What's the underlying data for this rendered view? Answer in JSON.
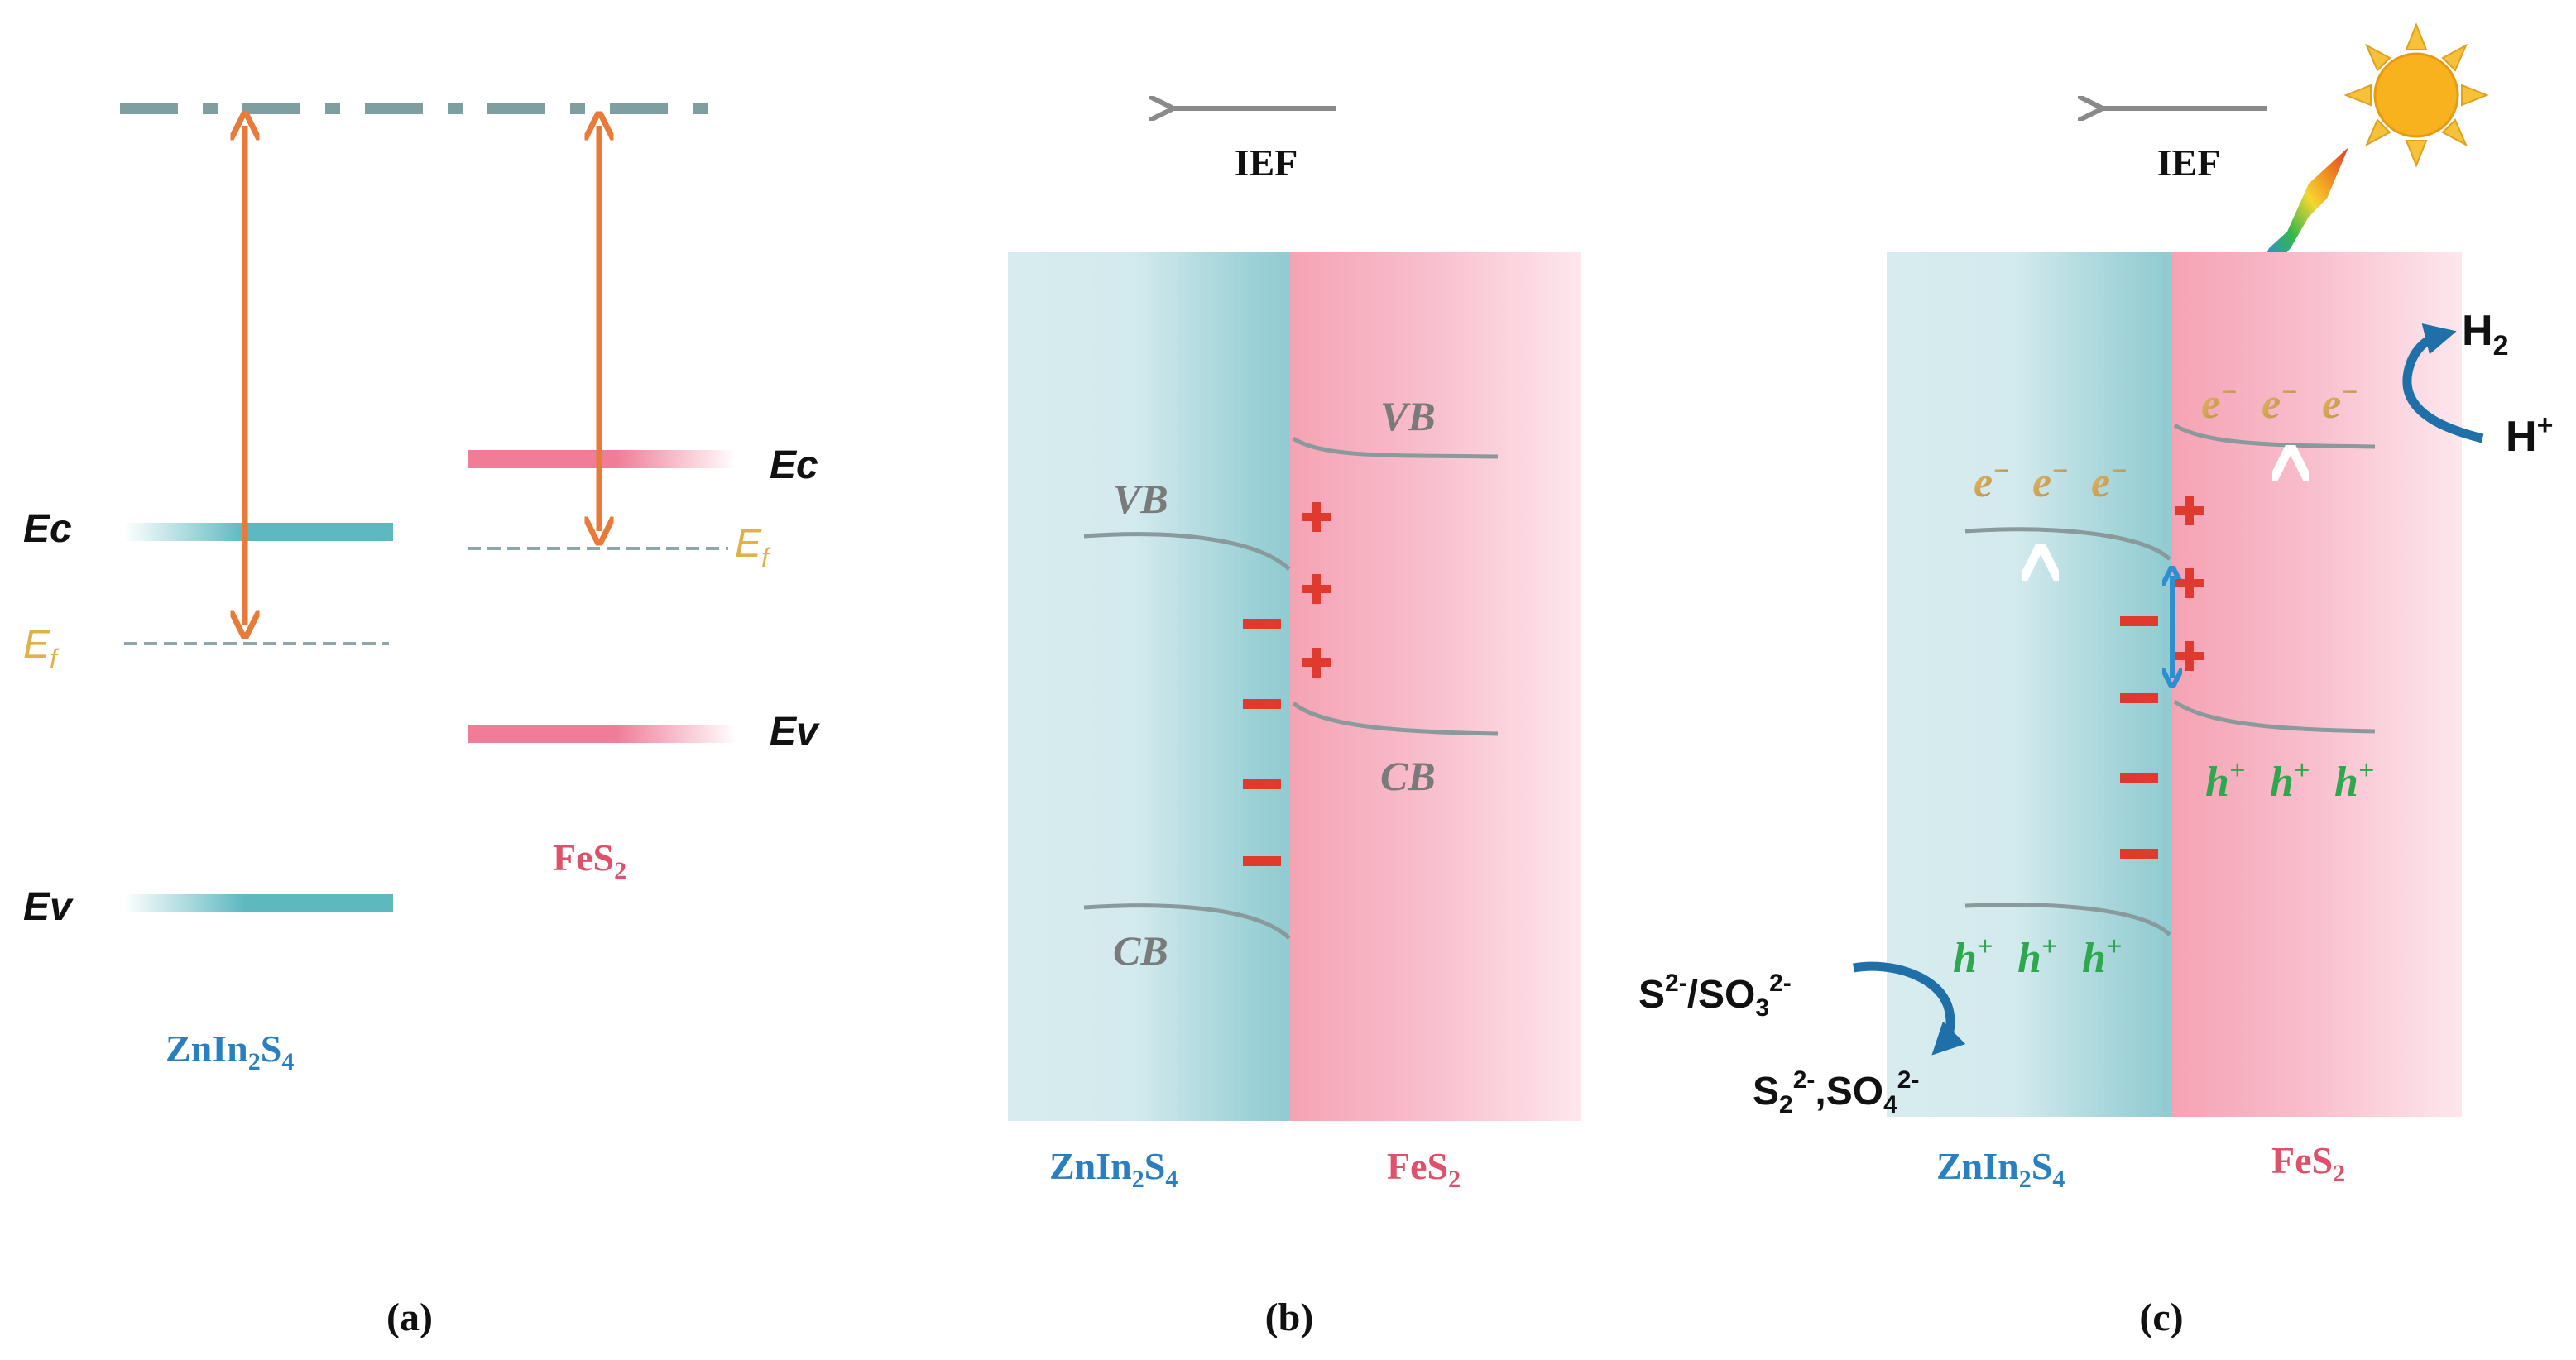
{
  "colors": {
    "teal": "#5db8c0",
    "pink": "#f07c98",
    "orange": "#e87a3a",
    "gray_line": "#8a9a9c",
    "ef_gold": "#e0b14a",
    "blue_label": "#2a7fc1",
    "red_label": "#e0506a",
    "green_hole": "#2ea84e",
    "minus_red": "#e03a2e",
    "arrow_blue": "#2e8fd0"
  },
  "panel_a": {
    "ec_left": "Ec",
    "ef_left_base": "E",
    "ef_left_sub": "f",
    "ev_left": "Ev",
    "ec_right": "Ec",
    "ef_right_base": "E",
    "ef_right_sub": "f",
    "ev_right": "Ev",
    "label_left_p1": "ZnIn",
    "label_left_s1": "2",
    "label_left_p2": "S",
    "label_left_s2": "4",
    "label_right_p1": "FeS",
    "label_right_s1": "2",
    "caption": "(a)"
  },
  "panel_b": {
    "ief": "IEF",
    "vb_left": "VB",
    "cb_left": "CB",
    "vb_right": "VB",
    "cb_right": "CB",
    "label_left_p1": "ZnIn",
    "label_left_s1": "2",
    "label_left_p2": "S",
    "label_left_s2": "4",
    "label_right_p1": "FeS",
    "label_right_s1": "2",
    "caption": "(b)"
  },
  "panel_c": {
    "ief": "IEF",
    "electron": "e",
    "electron_sup": "−",
    "hole": "h",
    "hole_sup": "+",
    "h2_base": "H",
    "h2_sub": "2",
    "hplus_base": "H",
    "hplus_sup": "+",
    "sacrificial_in": {
      "a": "S",
      "a_sup": "2-",
      "b": "/SO",
      "b_sub": "3",
      "b_sup": "2-"
    },
    "sacrificial_out": {
      "a": "S",
      "a_sub": "2",
      "a_sup": "2-",
      "b": ",SO",
      "b_sub": "4",
      "b_sup": "2-"
    },
    "label_left_p1": "ZnIn",
    "label_left_s1": "2",
    "label_left_p2": "S",
    "label_left_s2": "4",
    "label_right_p1": "FeS",
    "label_right_s1": "2",
    "caption": "(c)"
  }
}
